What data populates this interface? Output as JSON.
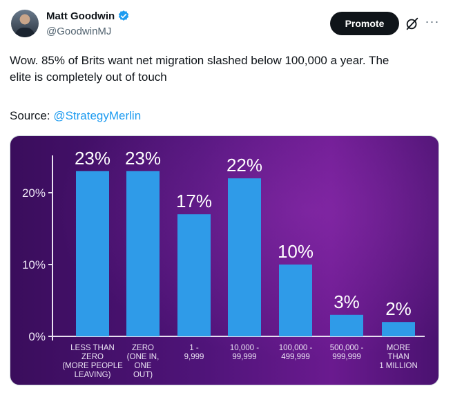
{
  "author": {
    "name": "Matt Goodwin",
    "handle": "@GoodwinMJ",
    "avatar_icon": "profile-photo",
    "verified_icon": "verified-badge-icon",
    "verified_color": "#1d9bf0"
  },
  "actions": {
    "promote_label": "Promote",
    "grok_icon": "slash-circle-icon",
    "more_icon": "more-icon",
    "more_glyph": "···"
  },
  "tweet": {
    "text": "Wow. 85% of Brits want net migration slashed below 100,000 a year. The\nelite is completely out of touch",
    "source_prefix": "Source: ",
    "source_link": "@StrategyMerlin",
    "link_color": "#1d9bf0"
  },
  "chart_data": {
    "type": "bar",
    "categories": [
      [
        "LESS THAN",
        "ZERO",
        "(MORE PEOPLE",
        "LEAVING)"
      ],
      [
        "ZERO",
        "(ONE IN,",
        "ONE",
        "OUT)"
      ],
      [
        "1 -",
        "9,999"
      ],
      [
        "10,000 -",
        "99,999"
      ],
      [
        "100,000 -",
        "499,999"
      ],
      [
        "500,000 -",
        "999,999"
      ],
      [
        "MORE",
        "THAN",
        "1 MILLION"
      ]
    ],
    "values": [
      23,
      23,
      17,
      22,
      10,
      3,
      2
    ],
    "data_labels": [
      "23%",
      "23%",
      "17%",
      "22%",
      "10%",
      "3%",
      "2%"
    ],
    "y_ticks": [
      0,
      10,
      20
    ],
    "y_tick_labels": [
      "0%",
      "10%",
      "20%"
    ],
    "ylim": [
      0,
      25
    ],
    "bar_color": "#2f9be8",
    "title": "",
    "xlabel": "",
    "ylabel": ""
  }
}
